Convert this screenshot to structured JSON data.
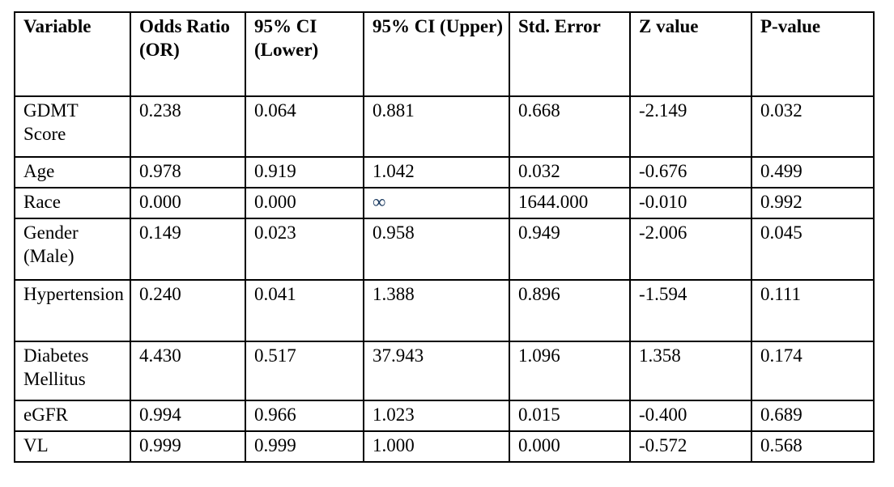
{
  "table": {
    "columns": [
      "Variable",
      "Odds Ratio (OR)",
      "95% CI (Lower)",
      "95% CI (Upper)",
      "Std. Error",
      "Z value",
      "P-value"
    ],
    "rows": [
      {
        "variable": "GDMT Score",
        "values": [
          "0.238",
          "0.064",
          "0.881",
          "0.668",
          "-2.149",
          "0.032"
        ]
      },
      {
        "variable": "Age",
        "values": [
          "0.978",
          "0.919",
          "1.042",
          "0.032",
          "-0.676",
          "0.499"
        ]
      },
      {
        "variable": "Race",
        "values": [
          "0.000",
          "0.000",
          "∞",
          "1644.000",
          "-0.010",
          "0.992"
        ]
      },
      {
        "variable": "Gender (Male)",
        "values": [
          "0.149",
          "0.023",
          "0.958",
          "0.949",
          "-2.006",
          "0.045"
        ]
      },
      {
        "variable": "Hypertension",
        "values": [
          "0.240",
          "0.041",
          "1.388",
          "0.896",
          "-1.594",
          "0.111"
        ]
      },
      {
        "variable": "Diabetes Mellitus",
        "values": [
          "4.430",
          "0.517",
          "37.943",
          "1.096",
          "1.358",
          "0.174"
        ]
      },
      {
        "variable": "eGFR",
        "values": [
          "0.994",
          "0.966",
          "1.023",
          "0.015",
          "-0.400",
          "0.689"
        ]
      },
      {
        "variable": "VL",
        "values": [
          "0.999",
          "0.999",
          "1.000",
          "0.000",
          "-0.572",
          "0.568"
        ]
      }
    ]
  },
  "colors": {
    "border": "#000000",
    "text": "#000000",
    "infinity_symbol": "#17375E",
    "background": "#FFFFFF"
  }
}
